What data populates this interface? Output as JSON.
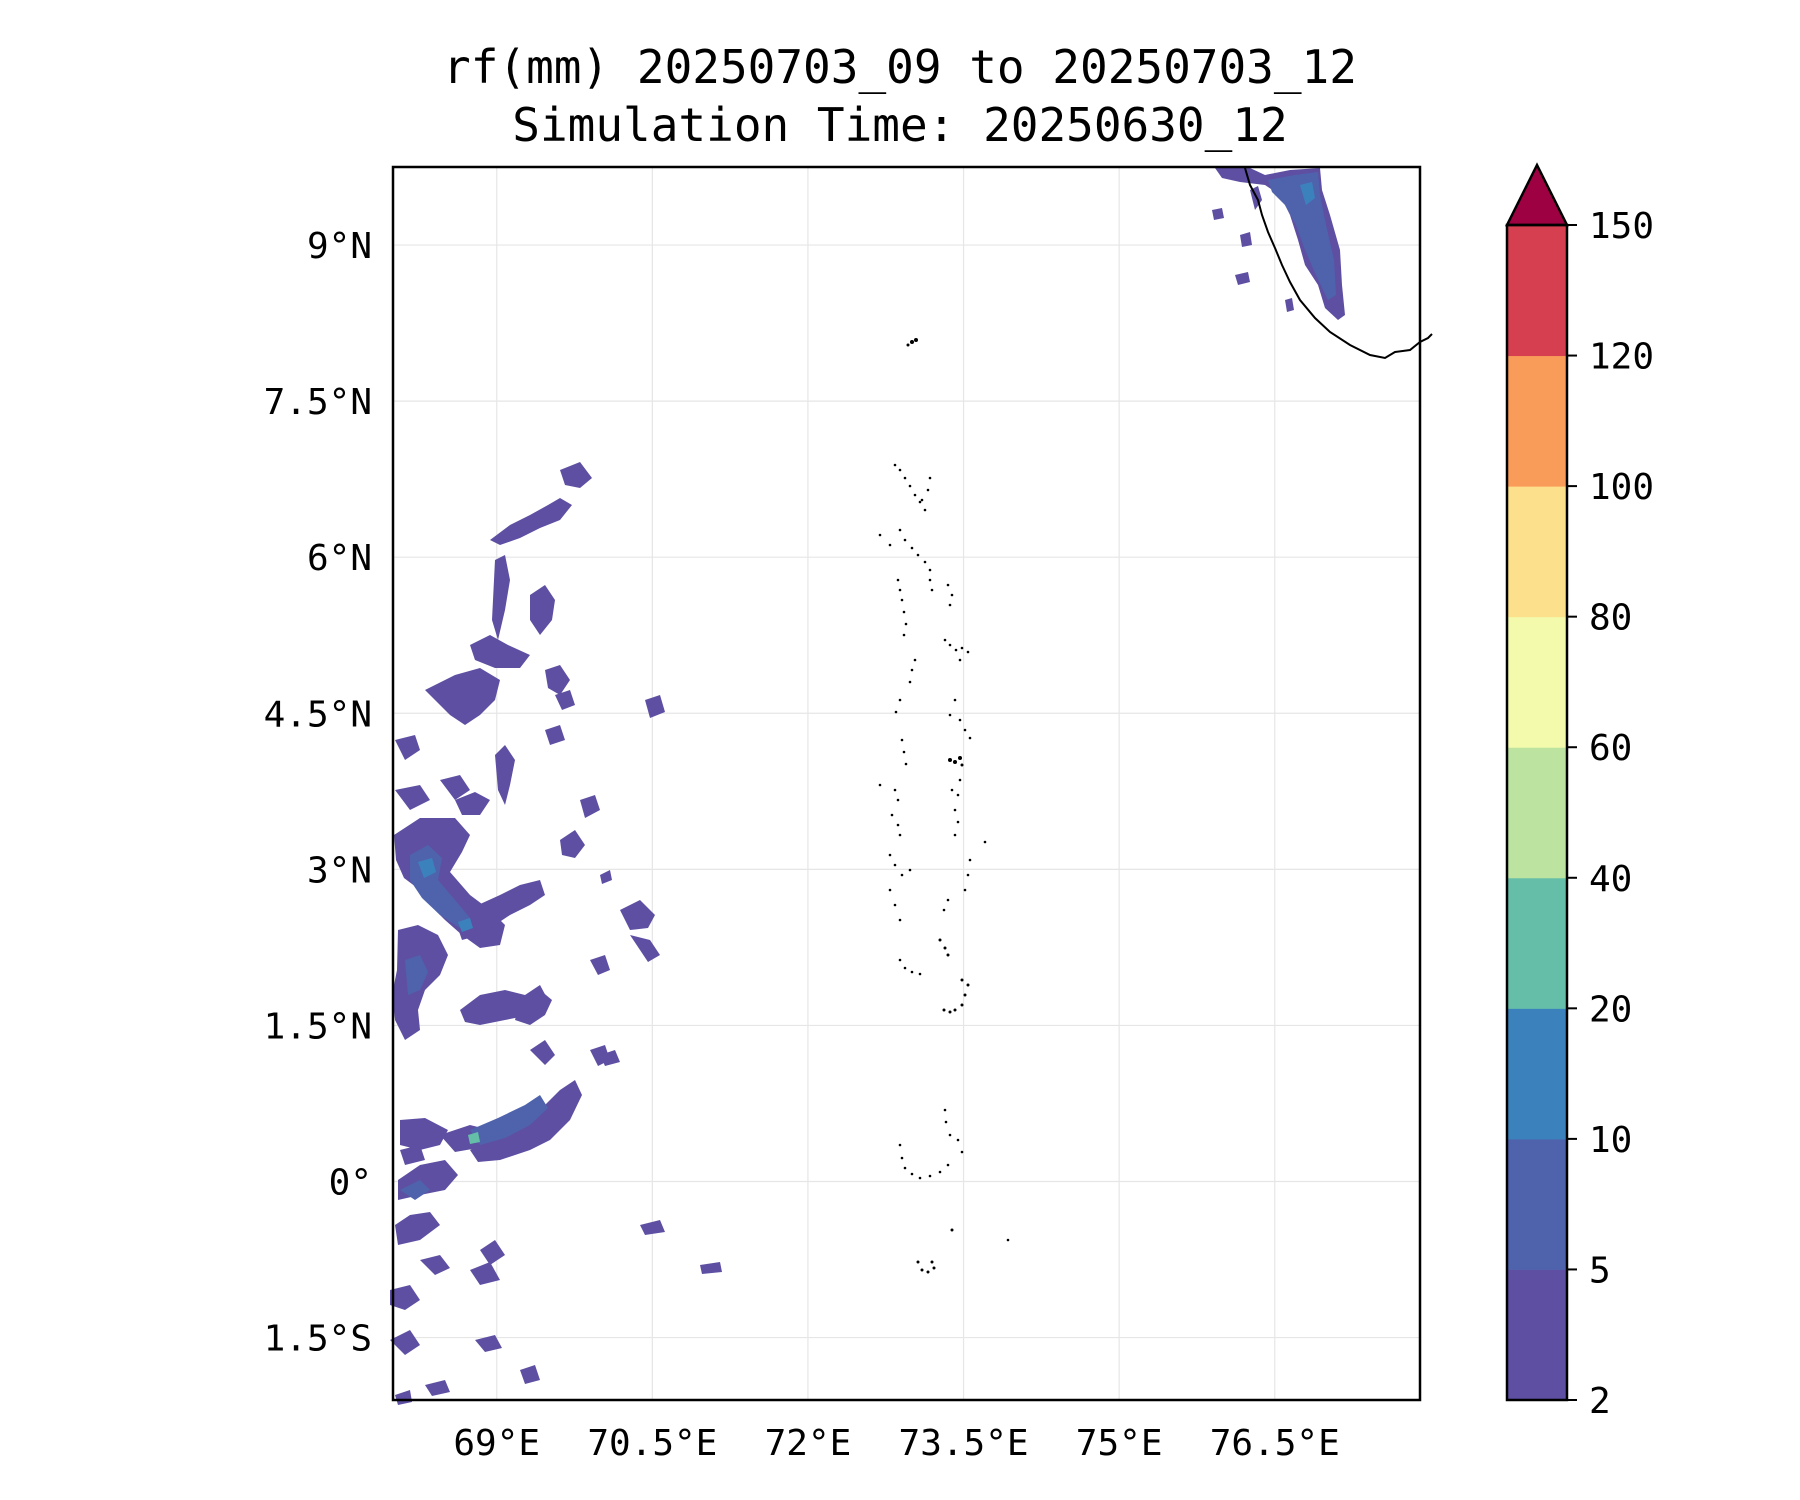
{
  "title_line1": "rf(mm) 20250703_09 to 20250703_12",
  "title_line2": "Simulation Time: 20250630_12",
  "map": {
    "extent": {
      "lon": [
        68.0,
        77.9
      ],
      "lat": [
        -2.1,
        9.75
      ]
    },
    "lon_ticks": [
      {
        "value": 69.0,
        "label": "69°E"
      },
      {
        "value": 70.5,
        "label": "70.5°E"
      },
      {
        "value": 72.0,
        "label": "72°E"
      },
      {
        "value": 73.5,
        "label": "73.5°E"
      },
      {
        "value": 75.0,
        "label": "75°E"
      },
      {
        "value": 76.5,
        "label": "76.5°E"
      }
    ],
    "lat_ticks": [
      {
        "value": 9.0,
        "label": "9°N"
      },
      {
        "value": 7.5,
        "label": "7.5°N"
      },
      {
        "value": 6.0,
        "label": "6°N"
      },
      {
        "value": 4.5,
        "label": "4.5°N"
      },
      {
        "value": 3.0,
        "label": "3°N"
      },
      {
        "value": 1.5,
        "label": "1.5°N"
      },
      {
        "value": 0.0,
        "label": "0°"
      },
      {
        "value": -1.5,
        "label": "1.5°S"
      }
    ],
    "gridlines": true,
    "grid_color": "#e6e6e6",
    "coastline_color": "#000000",
    "rain_fill_colors": {
      "2-5": "#5e4fa2",
      "5-10": "#4f63ad",
      "10-20": "#3b82bd",
      "20-40": "#65bfa8"
    }
  },
  "colorbar": {
    "levels": [
      2,
      5,
      10,
      20,
      40,
      60,
      80,
      100,
      120,
      150
    ],
    "colors": [
      "#5e4fa2",
      "#4f63ad",
      "#3b82bd",
      "#65bfa8",
      "#bde3a0",
      "#f3faac",
      "#fde08b",
      "#fa9c59",
      "#d53f4f"
    ],
    "extend_color": "#9e0142",
    "extend": "max"
  }
}
